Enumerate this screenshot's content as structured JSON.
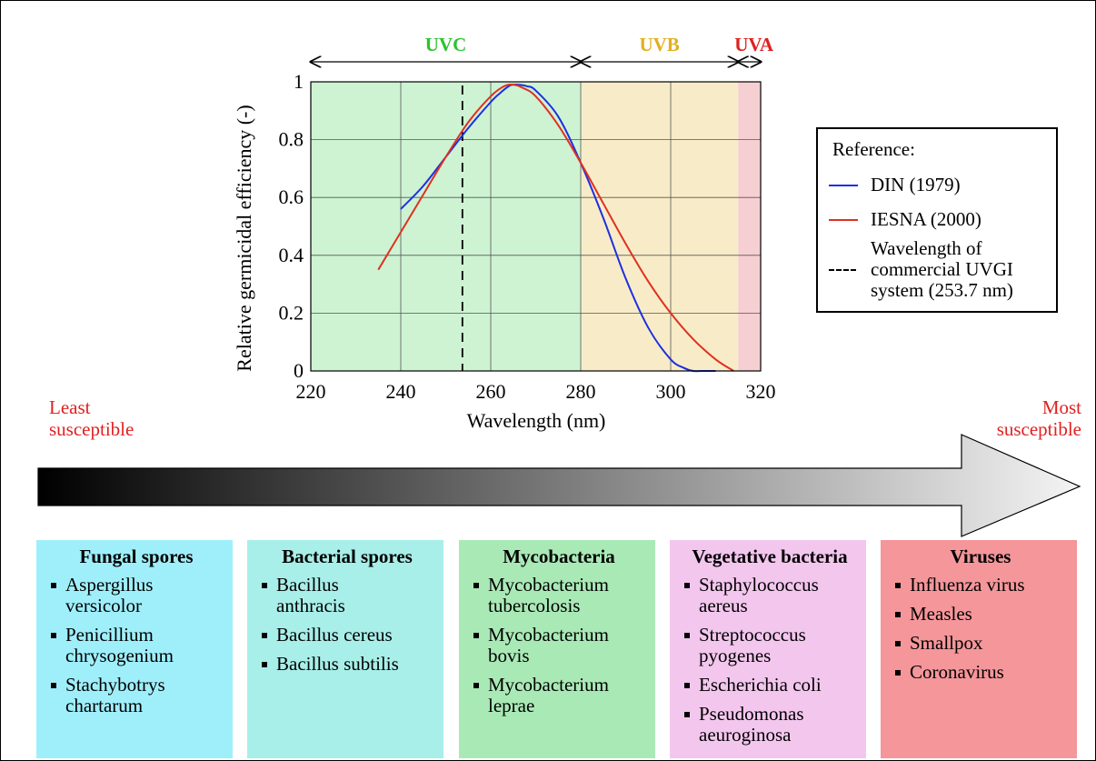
{
  "chart_data": {
    "type": "line",
    "title": "",
    "xlabel": "Wavelength (nm)",
    "ylabel": "Relative germicidal efficiency (-)",
    "xlim": [
      220,
      320
    ],
    "ylim": [
      0,
      1
    ],
    "x_ticks": [
      "220",
      "240",
      "260",
      "280",
      "300",
      "320"
    ],
    "y_ticks": [
      "0",
      "0.2",
      "0.4",
      "0.6",
      "0.8",
      "1"
    ],
    "grid": true,
    "legend_position": "right",
    "bands": [
      {
        "name": "UVC",
        "from": 220,
        "to": 280,
        "color": "#cdf3d3",
        "label_color": "#2bc42b"
      },
      {
        "name": "UVB",
        "from": 280,
        "to": 315,
        "color": "#f8ecc8",
        "label_color": "#e0b020"
      },
      {
        "name": "UVA",
        "from": 315,
        "to": 320,
        "color": "#f6cfd2",
        "label_color": "#e02020"
      }
    ],
    "vline": {
      "x": 253.7,
      "style": "dashed"
    },
    "series": [
      {
        "name": "DIN (1979)",
        "color": "#1f2fe0",
        "x": [
          240,
          245,
          250,
          255,
          260,
          262,
          264,
          265,
          266,
          268,
          270,
          275,
          280,
          285,
          290,
          295,
          300,
          303,
          305,
          307,
          310
        ],
        "y": [
          0.56,
          0.64,
          0.74,
          0.84,
          0.93,
          0.96,
          0.985,
          0.99,
          0.99,
          0.985,
          0.97,
          0.88,
          0.72,
          0.53,
          0.32,
          0.15,
          0.04,
          0.01,
          0.0,
          0.0,
          0.0
        ]
      },
      {
        "name": "IESNA (2000)",
        "color": "#e03020",
        "x": [
          235,
          240,
          245,
          250,
          255,
          260,
          263,
          265,
          267,
          270,
          275,
          280,
          285,
          290,
          295,
          300,
          305,
          310,
          314
        ],
        "y": [
          0.35,
          0.48,
          0.61,
          0.74,
          0.86,
          0.95,
          0.985,
          0.99,
          0.98,
          0.95,
          0.85,
          0.72,
          0.58,
          0.44,
          0.31,
          0.2,
          0.11,
          0.04,
          0.0
        ]
      }
    ]
  },
  "legend": {
    "title": "Reference:",
    "din": "DIN (1979)",
    "iesna": "IESNA (2000)",
    "uvgi_line1": "Wavelength of",
    "uvgi_line2": "commercial UVGI",
    "uvgi_line3": "system (253.7 nm)"
  },
  "scale": {
    "least": [
      "Least",
      "susceptible"
    ],
    "most": [
      "Most",
      "susceptible"
    ]
  },
  "cards": [
    {
      "title": "Fungal spores",
      "items": [
        [
          "Aspergillus",
          "versicolor"
        ],
        [
          "Penicillium",
          "chrysogenium"
        ],
        [
          "Stachybotrys",
          "chartarum"
        ]
      ]
    },
    {
      "title": "Bacterial spores",
      "items": [
        [
          "Bacillus",
          "anthracis"
        ],
        [
          "Bacillus cereus"
        ],
        [
          "Bacillus subtilis"
        ]
      ]
    },
    {
      "title": "Mycobacteria",
      "items": [
        [
          "Mycobacterium",
          "tubercolosis"
        ],
        [
          "Mycobacterium",
          "bovis"
        ],
        [
          "Mycobacterium",
          "leprae"
        ]
      ]
    },
    {
      "title": "Vegetative bacteria",
      "items": [
        [
          "Staphylococcus",
          "aereus"
        ],
        [
          "Streptococcus",
          "pyogenes"
        ],
        [
          "Escherichia coli"
        ],
        [
          "Pseudomonas",
          "aeuroginosa"
        ]
      ]
    },
    {
      "title": "Viruses",
      "items": [
        [
          "Influenza virus"
        ],
        [
          "Measles"
        ],
        [
          "Smallpox"
        ],
        [
          "Coronavirus"
        ]
      ]
    }
  ]
}
